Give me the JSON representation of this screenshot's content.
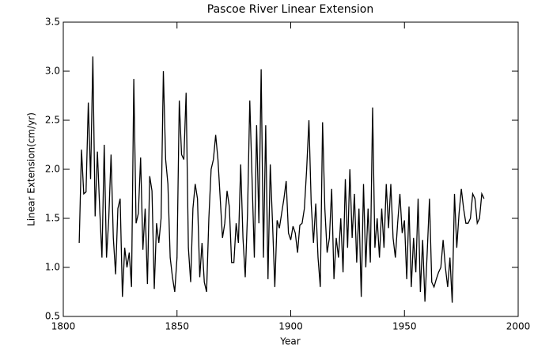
{
  "chart_data": {
    "type": "line",
    "title": "Pascoe River Linear Extension",
    "x_label": "Year",
    "y_label": "Linear Extension(cm/yr)",
    "x": [
      1807,
      1808,
      1809,
      1810,
      1811,
      1812,
      1813,
      1814,
      1815,
      1816,
      1817,
      1818,
      1819,
      1820,
      1821,
      1822,
      1823,
      1824,
      1825,
      1826,
      1827,
      1828,
      1829,
      1830,
      1831,
      1832,
      1833,
      1834,
      1835,
      1836,
      1837,
      1838,
      1839,
      1840,
      1841,
      1842,
      1843,
      1844,
      1845,
      1846,
      1847,
      1848,
      1849,
      1850,
      1851,
      1852,
      1853,
      1854,
      1855,
      1856,
      1857,
      1858,
      1859,
      1860,
      1861,
      1862,
      1863,
      1864,
      1865,
      1866,
      1867,
      1868,
      1869,
      1870,
      1871,
      1872,
      1873,
      1874,
      1875,
      1876,
      1877,
      1878,
      1879,
      1880,
      1881,
      1882,
      1883,
      1884,
      1885,
      1886,
      1887,
      1888,
      1889,
      1890,
      1891,
      1892,
      1893,
      1894,
      1895,
      1896,
      1897,
      1898,
      1899,
      1900,
      1901,
      1902,
      1903,
      1904,
      1905,
      1906,
      1907,
      1908,
      1909,
      1910,
      1911,
      1912,
      1913,
      1914,
      1915,
      1916,
      1917,
      1918,
      1919,
      1920,
      1921,
      1922,
      1923,
      1924,
      1925,
      1926,
      1927,
      1928,
      1929,
      1930,
      1931,
      1932,
      1933,
      1934,
      1935,
      1936,
      1937,
      1938,
      1939,
      1940,
      1941,
      1942,
      1943,
      1944,
      1945,
      1946,
      1947,
      1948,
      1949,
      1950,
      1951,
      1952,
      1953,
      1954,
      1955,
      1956,
      1957,
      1958,
      1959,
      1960,
      1961,
      1962,
      1963,
      1964,
      1965,
      1966,
      1967,
      1968,
      1969,
      1970,
      1971,
      1972,
      1973,
      1974,
      1975,
      1976,
      1977,
      1978,
      1979,
      1980,
      1981,
      1982,
      1983,
      1984,
      1985
    ],
    "series": [
      {
        "name": "Linear Extension",
        "color": "#000000",
        "values": [
          1.25,
          2.2,
          1.75,
          1.77,
          2.68,
          1.9,
          3.15,
          1.52,
          2.18,
          1.6,
          1.1,
          2.25,
          1.1,
          1.5,
          2.15,
          1.3,
          0.93,
          1.6,
          1.7,
          0.7,
          1.2,
          1.0,
          1.15,
          0.8,
          2.92,
          1.45,
          1.55,
          2.12,
          1.18,
          1.6,
          0.83,
          1.93,
          1.78,
          0.78,
          1.45,
          1.25,
          1.5,
          3.0,
          2.1,
          1.85,
          1.1,
          0.9,
          0.75,
          1.1,
          2.7,
          2.15,
          2.1,
          2.78,
          1.2,
          0.85,
          1.6,
          1.85,
          1.7,
          0.9,
          1.25,
          0.85,
          0.75,
          1.5,
          2.0,
          2.1,
          2.35,
          2.1,
          1.7,
          1.3,
          1.45,
          1.78,
          1.62,
          1.05,
          1.05,
          1.45,
          1.25,
          2.05,
          1.3,
          0.9,
          1.55,
          2.7,
          1.9,
          1.1,
          2.45,
          1.45,
          3.02,
          1.1,
          2.45,
          0.88,
          2.05,
          1.45,
          0.8,
          1.48,
          1.4,
          1.55,
          1.7,
          1.88,
          1.35,
          1.28,
          1.42,
          1.35,
          1.15,
          1.43,
          1.45,
          1.6,
          2.0,
          2.5,
          1.65,
          1.25,
          1.65,
          1.1,
          0.8,
          2.48,
          1.6,
          1.15,
          1.3,
          1.8,
          0.88,
          1.3,
          1.1,
          1.5,
          0.95,
          1.9,
          1.2,
          2.0,
          1.3,
          1.75,
          1.05,
          1.6,
          0.7,
          1.85,
          1.0,
          1.6,
          1.05,
          2.63,
          1.2,
          1.5,
          1.1,
          1.6,
          1.2,
          1.85,
          1.4,
          1.85,
          1.3,
          1.1,
          1.45,
          1.75,
          1.35,
          1.48,
          0.88,
          1.62,
          0.8,
          1.3,
          0.95,
          1.7,
          0.75,
          1.28,
          0.65,
          1.15,
          1.7,
          0.85,
          0.8,
          0.88,
          0.95,
          1.0,
          1.28,
          1.0,
          0.8,
          1.1,
          0.64,
          1.75,
          1.2,
          1.55,
          1.8,
          1.6,
          1.45,
          1.45,
          1.5,
          1.75,
          1.7,
          1.45,
          1.5,
          1.75,
          1.7
        ]
      }
    ],
    "xlim": [
      1800,
      2000
    ],
    "xticks": [
      1800,
      1850,
      1900,
      1950,
      2000
    ],
    "ylim": [
      0.5,
      3.5
    ],
    "yticks": [
      0.5,
      {
        "value": 1,
        "label": "1.0"
      },
      1.5,
      {
        "value": 2,
        "label": "2.0"
      },
      2.5,
      {
        "value": 3,
        "label": "3.0"
      },
      3.5
    ]
  }
}
